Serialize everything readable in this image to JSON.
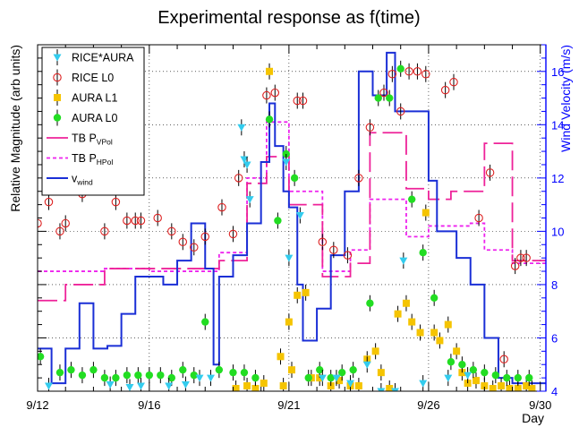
{
  "chart_data": {
    "type": "scatter",
    "title": "Experimental response as f(time)",
    "xlabel": "Day",
    "ylabel": "Relative Magnitude (arb units)",
    "y2label": "Wind Velocity (m/s)",
    "xlim": [
      0,
      18.2
    ],
    "x_ticks": [
      {
        "x": 0,
        "label": "9/12"
      },
      {
        "x": 4,
        "label": "9/16"
      },
      {
        "x": 9,
        "label": "9/21"
      },
      {
        "x": 14,
        "label": "9/26"
      },
      {
        "x": 18,
        "label": "9/30"
      }
    ],
    "y2lim": [
      4,
      17
    ],
    "y2_ticks": [
      4,
      6,
      8,
      10,
      12,
      14,
      16
    ],
    "grid": true,
    "legend_position": "top-left",
    "colors": {
      "rice_aura": "#33ccee",
      "rice_l0": "#dd2222",
      "aura_l1": "#f5c400",
      "aura_l0": "#22dd22",
      "tb_vpol": "#ee2299",
      "tb_hpol": "#ee22ee",
      "wind": "#1a2fd6",
      "axis2": "#0000ff"
    },
    "series": [
      {
        "key": "rice_aura",
        "name": "RICE*AURA",
        "marker": "triangle-down",
        "points": [
          [
            0.4,
            4.2
          ],
          [
            2.6,
            4.25
          ],
          [
            3.3,
            4.15
          ],
          [
            3.7,
            4.2
          ],
          [
            4.7,
            4.2
          ],
          [
            5.3,
            4.25
          ],
          [
            5.8,
            4.5
          ],
          [
            6.2,
            4.5
          ],
          [
            7.3,
            13.9
          ],
          [
            7.4,
            12.7
          ],
          [
            7.5,
            12.5
          ],
          [
            7.6,
            11.2
          ],
          [
            8.9,
            12.6
          ],
          [
            9.0,
            9.0
          ],
          [
            9.4,
            10.6
          ],
          [
            10.2,
            4.5
          ],
          [
            10.7,
            4.5
          ],
          [
            11.2,
            4.3
          ],
          [
            11.8,
            5.0
          ],
          [
            12.3,
            4.0
          ],
          [
            12.8,
            4.0
          ],
          [
            13.1,
            8.9
          ],
          [
            13.8,
            4.3
          ],
          [
            14.7,
            4.5
          ],
          [
            15.4,
            4.6
          ]
        ]
      },
      {
        "key": "rice_l0",
        "name": "RICE L0",
        "marker": "open-circle",
        "points": [
          [
            0,
            10.3
          ],
          [
            0.4,
            11.1
          ],
          [
            0.8,
            10.0
          ],
          [
            1.0,
            10.3
          ],
          [
            1.6,
            11.4
          ],
          [
            2.4,
            10.0
          ],
          [
            2.8,
            11.1
          ],
          [
            3.2,
            10.4
          ],
          [
            3.5,
            10.4
          ],
          [
            3.7,
            10.4
          ],
          [
            4.3,
            10.5
          ],
          [
            4.8,
            10.0
          ],
          [
            5.2,
            9.6
          ],
          [
            5.6,
            9.4
          ],
          [
            6.0,
            9.8
          ],
          [
            6.6,
            10.9
          ],
          [
            7.0,
            9.9
          ],
          [
            7.2,
            12.0
          ],
          [
            8.2,
            15.1
          ],
          [
            8.5,
            15.2
          ],
          [
            9.3,
            14.9
          ],
          [
            9.5,
            14.9
          ],
          [
            10.2,
            9.6
          ],
          [
            10.6,
            9.3
          ],
          [
            11.1,
            9.1
          ],
          [
            11.5,
            12.0
          ],
          [
            11.9,
            13.9
          ],
          [
            12.4,
            15.2
          ],
          [
            12.7,
            15.9
          ],
          [
            13.0,
            14.5
          ],
          [
            13.3,
            16.0
          ],
          [
            13.6,
            16.0
          ],
          [
            13.9,
            15.9
          ],
          [
            14.6,
            15.3
          ],
          [
            14.9,
            15.6
          ],
          [
            15.8,
            10.5
          ],
          [
            16.2,
            12.2
          ],
          [
            16.7,
            5.2
          ],
          [
            17.1,
            8.7
          ],
          [
            17.3,
            9.0
          ],
          [
            17.5,
            9.0
          ]
        ]
      },
      {
        "key": "aura_l1",
        "name": "AURA L1",
        "marker": "square",
        "points": [
          [
            7.1,
            4.1
          ],
          [
            7.5,
            4.2
          ],
          [
            7.8,
            4.1
          ],
          [
            8.1,
            4.3
          ],
          [
            8.3,
            16.0
          ],
          [
            8.7,
            5.3
          ],
          [
            8.8,
            4.2
          ],
          [
            9.0,
            6.6
          ],
          [
            9.1,
            4.8
          ],
          [
            9.3,
            7.6
          ],
          [
            9.6,
            7.7
          ],
          [
            9.8,
            4.5
          ],
          [
            10.1,
            4.5
          ],
          [
            10.5,
            4.2
          ],
          [
            10.8,
            4.4
          ],
          [
            11.2,
            4.2
          ],
          [
            11.5,
            4.2
          ],
          [
            11.8,
            5.2
          ],
          [
            12.1,
            5.5
          ],
          [
            12.3,
            4.7
          ],
          [
            12.6,
            4.1
          ],
          [
            12.9,
            6.9
          ],
          [
            13.2,
            7.3
          ],
          [
            13.4,
            6.6
          ],
          [
            13.7,
            6.2
          ],
          [
            13.9,
            10.7
          ],
          [
            14.2,
            6.2
          ],
          [
            14.4,
            5.9
          ],
          [
            14.7,
            6.5
          ],
          [
            15.0,
            5.5
          ],
          [
            15.2,
            4.7
          ],
          [
            15.4,
            4.3
          ],
          [
            15.7,
            4.4
          ],
          [
            16.0,
            4.2
          ],
          [
            16.3,
            4.1
          ],
          [
            16.6,
            4.2
          ],
          [
            16.9,
            4.1
          ],
          [
            17.2,
            4.1
          ],
          [
            17.5,
            4.2
          ],
          [
            17.7,
            4.1
          ]
        ]
      },
      {
        "key": "aura_l0",
        "name": "AURA L0",
        "marker": "filled-circle",
        "points": [
          [
            0.1,
            5.3
          ],
          [
            0.8,
            4.7
          ],
          [
            1.2,
            4.8
          ],
          [
            1.6,
            4.6
          ],
          [
            2.0,
            4.8
          ],
          [
            2.4,
            4.5
          ],
          [
            2.8,
            4.5
          ],
          [
            3.2,
            4.6
          ],
          [
            3.6,
            4.6
          ],
          [
            4.0,
            4.6
          ],
          [
            4.4,
            4.6
          ],
          [
            4.8,
            4.5
          ],
          [
            5.2,
            4.8
          ],
          [
            5.6,
            4.6
          ],
          [
            6.0,
            6.6
          ],
          [
            6.5,
            4.8
          ],
          [
            7.0,
            4.7
          ],
          [
            7.4,
            4.7
          ],
          [
            7.8,
            4.5
          ],
          [
            8.3,
            14.2
          ],
          [
            8.6,
            10.4
          ],
          [
            8.9,
            12.9
          ],
          [
            9.2,
            12.0
          ],
          [
            9.7,
            4.5
          ],
          [
            10.1,
            4.8
          ],
          [
            10.5,
            4.5
          ],
          [
            10.9,
            4.7
          ],
          [
            11.3,
            4.8
          ],
          [
            11.9,
            7.3
          ],
          [
            12.2,
            15.0
          ],
          [
            12.6,
            15.0
          ],
          [
            13.0,
            16.1
          ],
          [
            13.4,
            11.2
          ],
          [
            13.8,
            9.2
          ],
          [
            14.2,
            7.5
          ],
          [
            14.8,
            5.1
          ],
          [
            15.2,
            5.0
          ],
          [
            15.6,
            4.8
          ],
          [
            16.0,
            4.7
          ],
          [
            16.4,
            4.6
          ],
          [
            16.8,
            4.5
          ],
          [
            17.2,
            4.5
          ],
          [
            17.6,
            4.5
          ]
        ]
      },
      {
        "key": "tb_vpol",
        "name": "TB P",
        "name_sub": "VPol",
        "style": "long-dash",
        "points": [
          [
            0,
            7.4
          ],
          [
            1.0,
            8.0
          ],
          [
            2.4,
            8.6
          ],
          [
            4.0,
            8.6
          ],
          [
            5.0,
            8.6
          ],
          [
            6.5,
            8.9
          ],
          [
            7.5,
            11.8
          ],
          [
            8.2,
            12.8
          ],
          [
            9.0,
            11.0
          ],
          [
            10.2,
            8.3
          ],
          [
            11.2,
            8.8
          ],
          [
            11.9,
            13.7
          ],
          [
            12.4,
            13.7
          ],
          [
            13.2,
            11.6
          ],
          [
            14.0,
            11.2
          ],
          [
            14.8,
            11.5
          ],
          [
            15.5,
            11.5
          ],
          [
            16.0,
            13.3
          ],
          [
            17.0,
            8.9
          ]
        ]
      },
      {
        "key": "tb_hpol",
        "name": "TB P",
        "name_sub": "HPol",
        "style": "dotted",
        "points": [
          [
            0,
            8.5
          ],
          [
            1.0,
            8.5
          ],
          [
            2.4,
            8.6
          ],
          [
            4.0,
            8.5
          ],
          [
            5.0,
            8.5
          ],
          [
            6.5,
            9.2
          ],
          [
            7.5,
            12.0
          ],
          [
            8.2,
            14.1
          ],
          [
            9.0,
            11.5
          ],
          [
            10.2,
            8.5
          ],
          [
            11.2,
            9.3
          ],
          [
            11.9,
            11.2
          ],
          [
            12.4,
            11.2
          ],
          [
            13.2,
            9.8
          ],
          [
            14.0,
            10.2
          ],
          [
            14.8,
            10.2
          ],
          [
            15.5,
            10.3
          ],
          [
            16.0,
            9.3
          ],
          [
            17.0,
            8.8
          ]
        ]
      },
      {
        "key": "wind",
        "name": "v",
        "name_sub": "wind",
        "axis": "right",
        "style": "step",
        "points": [
          [
            0,
            5.6
          ],
          [
            0.5,
            4.3
          ],
          [
            1.0,
            5.6
          ],
          [
            1.5,
            7.3
          ],
          [
            2.0,
            5.6
          ],
          [
            2.5,
            5.7
          ],
          [
            3.0,
            6.9
          ],
          [
            3.5,
            8.3
          ],
          [
            4.0,
            8.3
          ],
          [
            4.5,
            8.0
          ],
          [
            5.0,
            8.9
          ],
          [
            5.5,
            10.3
          ],
          [
            6.0,
            8.6
          ],
          [
            6.3,
            5.0
          ],
          [
            6.5,
            8.3
          ],
          [
            7.0,
            9.1
          ],
          [
            7.5,
            10.3
          ],
          [
            8.0,
            12.6
          ],
          [
            8.3,
            14.8
          ],
          [
            8.5,
            13.2
          ],
          [
            8.8,
            11.5
          ],
          [
            9.0,
            10.9
          ],
          [
            9.3,
            8.0
          ],
          [
            9.5,
            5.9
          ],
          [
            10.0,
            7.1
          ],
          [
            10.5,
            9.1
          ],
          [
            11.0,
            11.5
          ],
          [
            11.5,
            16.0
          ],
          [
            12.0,
            15.1
          ],
          [
            12.5,
            16.7
          ],
          [
            12.8,
            14.5
          ],
          [
            13.5,
            14.5
          ],
          [
            14.0,
            11.9
          ],
          [
            14.3,
            10.0
          ],
          [
            15.0,
            9.0
          ],
          [
            15.5,
            8.0
          ],
          [
            16.0,
            6.0
          ],
          [
            16.5,
            4.5
          ],
          [
            17.0,
            4.3
          ],
          [
            18.0,
            4.3
          ]
        ]
      }
    ]
  }
}
